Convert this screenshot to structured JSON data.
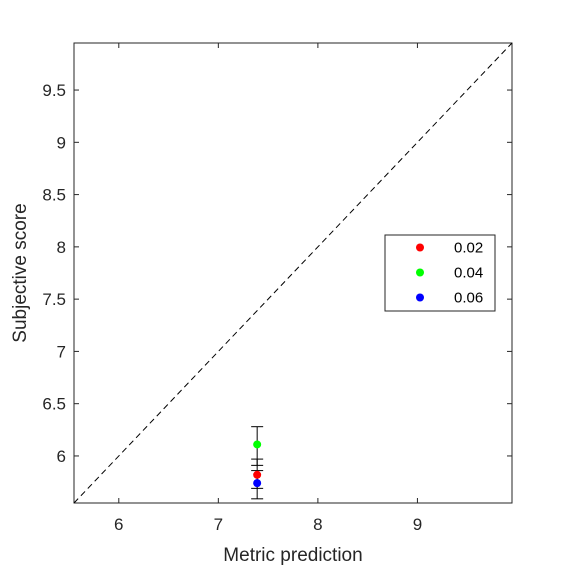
{
  "chart_data": {
    "type": "scatter",
    "title": "",
    "xlabel": "Metric prediction",
    "ylabel": "Subjective score",
    "xlim": [
      5.55,
      9.95
    ],
    "ylim": [
      5.55,
      9.95
    ],
    "x_ticks": [
      6,
      7,
      8,
      9
    ],
    "x_tick_labels": [
      "6",
      "7",
      "8",
      "9"
    ],
    "y_ticks": [
      6,
      6.5,
      7,
      7.5,
      8,
      8.5,
      9,
      9.5
    ],
    "y_tick_labels": [
      "6",
      "6.5",
      "7",
      "7.5",
      "8",
      "8.5",
      "9",
      "9.5"
    ],
    "grid": false,
    "reference_line": {
      "style": "dashed",
      "from": [
        5.55,
        5.55
      ],
      "to": [
        9.95,
        9.95
      ],
      "color": "#000000"
    },
    "legend": {
      "position": "right"
    },
    "series": [
      {
        "name": "0.02",
        "color": "#ff0000",
        "points": [
          {
            "x": 7.39,
            "y": 5.82,
            "err_low": 5.69,
            "err_high": 5.97
          }
        ]
      },
      {
        "name": "0.04",
        "color": "#00ff00",
        "points": [
          {
            "x": 7.39,
            "y": 6.11,
            "err_low": 5.91,
            "err_high": 6.28
          }
        ]
      },
      {
        "name": "0.06",
        "color": "#0000ff",
        "points": [
          {
            "x": 7.39,
            "y": 5.74,
            "err_low": 5.59,
            "err_high": 5.86
          }
        ]
      }
    ]
  }
}
